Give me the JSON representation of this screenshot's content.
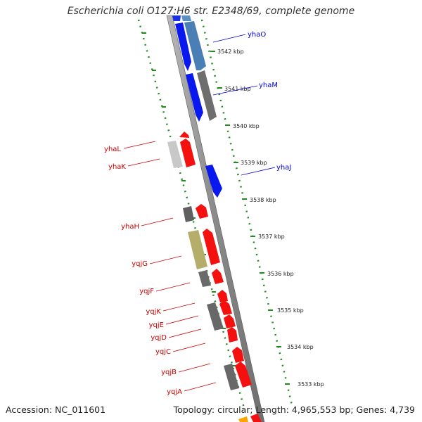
{
  "title": "Escherichia coli O127:H6 str. E2348/69, complete genome",
  "footer": {
    "accession": "Accession: NC_011601",
    "topology": "Topology: circular; Length: 4,965,553 bp; Genes: 4,739"
  },
  "colors": {
    "forward_gene": "#ff0000",
    "reverse_gene": "#0000ff",
    "backbone": "#8c8c8c",
    "ticks": "#228b22",
    "label_forward": "#cc0000",
    "label_reverse": "#0000cc"
  },
  "kbp_labels": [
    "3542 kbp",
    "3541 kbp",
    "3540 kbp",
    "3539 kbp",
    "3538 kbp",
    "3537 kbp",
    "3536 kbp",
    "3535 kbp",
    "3534 kbp",
    "3533 kbp"
  ],
  "reverse_gene_labels": [
    "yhaO",
    "yhaM",
    "yhaJ"
  ],
  "forward_gene_labels": [
    "yhaL",
    "yhaK",
    "yhaH",
    "yqjG",
    "yqjF",
    "yqjK",
    "yqjE",
    "yqjD",
    "yqjC",
    "yqjB",
    "yqjA"
  ]
}
